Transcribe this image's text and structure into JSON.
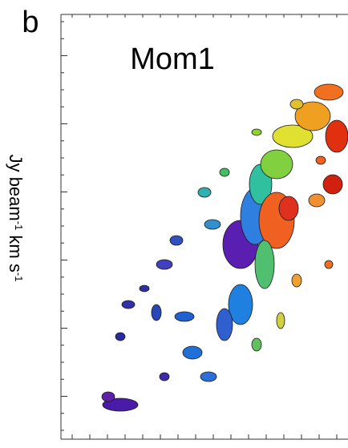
{
  "panel_label": "b",
  "title": "Mom1",
  "colorbar_label": {
    "parts": [
      "Jy beam",
      "-1",
      " km s",
      "-1"
    ]
  }
}
